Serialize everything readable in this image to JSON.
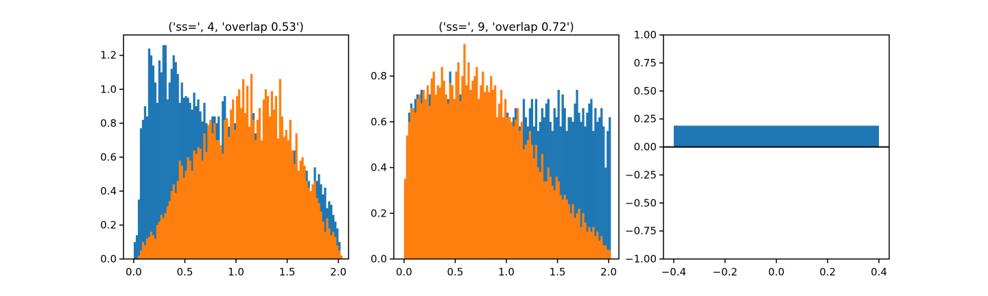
{
  "colors": {
    "series1": "#1f77b4",
    "series2": "#ff7f0e",
    "axes": "#000000",
    "background": "#ffffff"
  },
  "chart_data": [
    {
      "type": "histogram",
      "title": "('ss=', 4, 'overlap 0.53')",
      "xlim": [
        -0.1,
        2.1
      ],
      "ylim": [
        0.0,
        1.32
      ],
      "xticks": [
        0.0,
        0.5,
        1.0,
        1.5,
        2.0
      ],
      "xtick_labels": [
        "0.0",
        "0.5",
        "1.0",
        "1.5",
        "2.0"
      ],
      "yticks": [
        0.0,
        0.2,
        0.4,
        0.6,
        0.8,
        1.0,
        1.2
      ],
      "ytick_labels": [
        "0.0",
        "0.2",
        "0.4",
        "0.6",
        "0.8",
        "1.0",
        "1.2"
      ],
      "bin_start": 0.0,
      "bin_width": 0.02,
      "series": [
        {
          "color": "#1f77b4",
          "values": [
            0.1,
            0.14,
            0.35,
            0.77,
            0.82,
            0.9,
            0.84,
            1.24,
            1.2,
            1.14,
            1.04,
            0.92,
            1.17,
            1.1,
            1.26,
            1.26,
            0.94,
            1.04,
            1.12,
            1.2,
            1.16,
            1.09,
            0.92,
            1.04,
            0.95,
            0.96,
            0.95,
            0.92,
            0.88,
            0.98,
            0.9,
            0.94,
            0.87,
            0.81,
            0.92,
            0.8,
            0.72,
            0.82,
            0.84,
            0.84,
            0.8,
            0.84,
            0.65,
            0.93,
            0.96,
            0.8,
            0.78,
            0.73,
            0.75,
            0.8,
            0.72,
            0.8,
            0.79,
            0.78,
            0.82,
            0.78,
            0.72,
            0.68,
            0.86,
            0.74,
            0.58,
            0.62,
            0.56,
            0.66,
            0.62,
            0.6,
            0.58,
            0.72,
            0.56,
            0.76,
            0.6,
            0.64,
            0.46,
            0.58,
            0.52,
            0.48,
            0.56,
            0.62,
            0.64,
            0.58,
            0.48,
            0.5,
            0.48,
            0.46,
            0.52,
            0.46,
            0.4,
            0.44,
            0.54,
            0.46,
            0.5,
            0.44,
            0.38,
            0.42,
            0.3,
            0.34,
            0.32,
            0.26,
            0.22,
            0.18,
            0.1
          ],
          "visible_on_top": false
        },
        {
          "color": "#ff7f0e",
          "values": [
            0.0,
            0.0,
            0.02,
            0.05,
            0.1,
            0.08,
            0.12,
            0.13,
            0.16,
            0.14,
            0.12,
            0.2,
            0.22,
            0.26,
            0.24,
            0.27,
            0.31,
            0.34,
            0.4,
            0.44,
            0.39,
            0.46,
            0.58,
            0.55,
            0.48,
            0.52,
            0.6,
            0.58,
            0.52,
            0.64,
            0.62,
            0.66,
            0.65,
            0.58,
            0.74,
            0.63,
            0.79,
            0.82,
            0.74,
            0.8,
            0.7,
            0.7,
            0.67,
            0.62,
            0.82,
            0.83,
            0.72,
            0.88,
            0.94,
            0.76,
            0.96,
            1.0,
            0.89,
            1.06,
            0.86,
            1.02,
            0.78,
            1.09,
            0.82,
            0.7,
            0.82,
            0.89,
            0.7,
            0.94,
            1.0,
            0.96,
            0.84,
            0.99,
            0.88,
            0.96,
            0.71,
            1.06,
            0.84,
            0.72,
            0.76,
            0.7,
            0.82,
            0.64,
            0.56,
            0.74,
            0.52,
            0.58,
            0.6,
            0.55,
            0.46,
            0.42,
            0.4,
            0.44,
            0.46,
            0.36,
            0.33,
            0.28,
            0.22,
            0.16,
            0.24,
            0.18,
            0.14,
            0.16,
            0.13,
            0.08,
            0.05,
            0.02
          ],
          "visible_on_top": true
        }
      ]
    },
    {
      "type": "histogram",
      "title": "('ss=', 9, 'overlap 0.72')",
      "xlim": [
        -0.1,
        2.1
      ],
      "ylim": [
        0.0,
        0.98
      ],
      "xticks": [
        0.0,
        0.5,
        1.0,
        1.5,
        2.0
      ],
      "xtick_labels": [
        "0.0",
        "0.5",
        "1.0",
        "1.5",
        "2.0"
      ],
      "yticks": [
        0.0,
        0.2,
        0.4,
        0.6,
        0.8
      ],
      "ytick_labels": [
        "0.0",
        "0.2",
        "0.4",
        "0.6",
        "0.8"
      ],
      "bin_start": 0.0,
      "bin_width": 0.02,
      "series": [
        {
          "color": "#1f77b4",
          "values": [
            0.35,
            0.54,
            0.64,
            0.68,
            0.66,
            0.7,
            0.72,
            0.66,
            0.74,
            0.7,
            0.66,
            0.72,
            0.72,
            0.74,
            0.78,
            0.71,
            0.66,
            0.74,
            0.76,
            0.71,
            0.68,
            0.7,
            0.82,
            0.76,
            0.7,
            0.68,
            0.64,
            0.72,
            0.76,
            0.7,
            0.64,
            0.62,
            0.6,
            0.62,
            0.62,
            0.64,
            0.58,
            0.66,
            0.64,
            0.58,
            0.6,
            0.66,
            0.62,
            0.56,
            0.62,
            0.6,
            0.66,
            0.6,
            0.58,
            0.62,
            0.64,
            0.62,
            0.58,
            0.62,
            0.66,
            0.64,
            0.58,
            0.6,
            0.7,
            0.62,
            0.58,
            0.66,
            0.7,
            0.58,
            0.7,
            0.56,
            0.6,
            0.66,
            0.62,
            0.68,
            0.7,
            0.6,
            0.56,
            0.66,
            0.62,
            0.74,
            0.58,
            0.72,
            0.66,
            0.56,
            0.62,
            0.62,
            0.6,
            0.68,
            0.74,
            0.64,
            0.6,
            0.66,
            0.58,
            0.64,
            0.68,
            0.7,
            0.56,
            0.66,
            0.6,
            0.62,
            0.66,
            0.58,
            0.4,
            0.56,
            0.62
          ],
          "visible_on_top": false
        },
        {
          "color": "#ff7f0e",
          "values": [
            0.35,
            0.54,
            0.6,
            0.66,
            0.66,
            0.64,
            0.7,
            0.72,
            0.68,
            0.74,
            0.7,
            0.76,
            0.67,
            0.79,
            0.82,
            0.72,
            0.76,
            0.75,
            0.84,
            0.78,
            0.72,
            0.68,
            0.77,
            0.76,
            0.7,
            0.82,
            0.86,
            0.69,
            0.8,
            0.94,
            0.76,
            0.86,
            0.74,
            0.78,
            0.8,
            0.84,
            0.7,
            0.76,
            0.82,
            0.73,
            0.76,
            0.73,
            0.8,
            0.74,
            0.76,
            0.62,
            0.68,
            0.74,
            0.62,
            0.7,
            0.62,
            0.62,
            0.6,
            0.58,
            0.61,
            0.66,
            0.56,
            0.6,
            0.48,
            0.5,
            0.52,
            0.56,
            0.5,
            0.44,
            0.5,
            0.4,
            0.38,
            0.46,
            0.34,
            0.34,
            0.4,
            0.36,
            0.32,
            0.3,
            0.36,
            0.34,
            0.28,
            0.26,
            0.28,
            0.26,
            0.24,
            0.2,
            0.24,
            0.18,
            0.2,
            0.22,
            0.14,
            0.2,
            0.16,
            0.12,
            0.14,
            0.12,
            0.14,
            0.1,
            0.12,
            0.08,
            0.1,
            0.06,
            0.06,
            0.04,
            0.04
          ],
          "visible_on_top": true
        }
      ]
    },
    {
      "type": "bar",
      "title": "",
      "xlim": [
        -0.44,
        0.44
      ],
      "ylim": [
        -1.0,
        1.0
      ],
      "xticks": [
        -0.4,
        -0.2,
        0.0,
        0.2,
        0.4
      ],
      "xtick_labels": [
        "−0.4",
        "−0.2",
        "0.0",
        "0.2",
        "0.4"
      ],
      "yticks": [
        -1.0,
        -0.75,
        -0.5,
        -0.25,
        0.0,
        0.25,
        0.5,
        0.75,
        1.0
      ],
      "ytick_labels": [
        "−1.00",
        "−0.75",
        "−0.50",
        "−0.25",
        "0.00",
        "0.25",
        "0.50",
        "0.75",
        "1.00"
      ],
      "bars": [
        {
          "x": 0.0,
          "width": 0.8,
          "value": 0.19,
          "color": "#1f77b4"
        }
      ],
      "hline": 0.0
    }
  ]
}
